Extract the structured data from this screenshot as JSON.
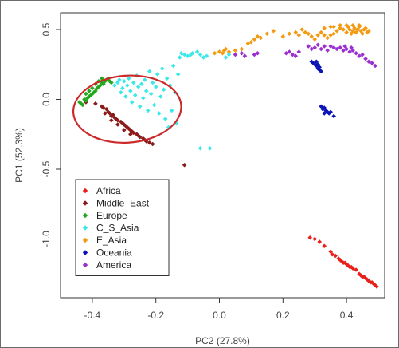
{
  "chart_data": {
    "type": "scatter",
    "xlabel": "PC2 (27.8%)",
    "ylabel": "PC1 (52.3%)",
    "xlim": [
      -0.5,
      0.52
    ],
    "ylim": [
      -1.42,
      0.62
    ],
    "xticks": [
      -0.4,
      -0.2,
      0.0,
      0.2,
      0.4
    ],
    "xtick_labels": [
      "-0.4",
      "-0.2",
      "0.0",
      "0.2",
      "0.4"
    ],
    "yticks": [
      0.5,
      0.0,
      -0.5,
      -1.0
    ],
    "ytick_labels": [
      "0.5",
      "0.0",
      "-0.5",
      "-1.0"
    ],
    "grid": false,
    "legend_position": "bottom-left",
    "annotation": {
      "shape": "hand-drawn ellipse",
      "color": "#cc2a2a",
      "center": [
        -0.29,
        -0.07
      ],
      "radii": [
        0.17,
        0.24
      ]
    },
    "series": [
      {
        "name": "Africa",
        "color": "#e8201c",
        "points": [
          [
            0.285,
            -0.99
          ],
          [
            0.3,
            -1.0
          ],
          [
            0.315,
            -1.02
          ],
          [
            0.33,
            -1.05
          ],
          [
            0.35,
            -1.09
          ],
          [
            0.355,
            -1.11
          ],
          [
            0.365,
            -1.12
          ],
          [
            0.375,
            -1.14
          ],
          [
            0.38,
            -1.15
          ],
          [
            0.385,
            -1.16
          ],
          [
            0.39,
            -1.17
          ],
          [
            0.395,
            -1.17
          ],
          [
            0.4,
            -1.18
          ],
          [
            0.405,
            -1.19
          ],
          [
            0.41,
            -1.2
          ],
          [
            0.415,
            -1.2
          ],
          [
            0.42,
            -1.21
          ],
          [
            0.43,
            -1.22
          ],
          [
            0.44,
            -1.25
          ],
          [
            0.445,
            -1.26
          ],
          [
            0.45,
            -1.27
          ],
          [
            0.455,
            -1.27
          ],
          [
            0.46,
            -1.28
          ],
          [
            0.465,
            -1.29
          ],
          [
            0.47,
            -1.3
          ],
          [
            0.475,
            -1.31
          ],
          [
            0.48,
            -1.31
          ],
          [
            0.485,
            -1.32
          ],
          [
            0.49,
            -1.33
          ],
          [
            0.495,
            -1.34
          ]
        ]
      },
      {
        "name": "Middle_East",
        "color": "#8b1a1a",
        "points": [
          [
            -0.42,
            -0.02
          ],
          [
            -0.39,
            -0.03
          ],
          [
            -0.37,
            -0.05
          ],
          [
            -0.365,
            -0.06
          ],
          [
            -0.355,
            -0.07
          ],
          [
            -0.35,
            -0.09
          ],
          [
            -0.345,
            -0.1
          ],
          [
            -0.34,
            -0.12
          ],
          [
            -0.335,
            -0.11
          ],
          [
            -0.33,
            -0.13
          ],
          [
            -0.325,
            -0.14
          ],
          [
            -0.32,
            -0.15
          ],
          [
            -0.31,
            -0.16
          ],
          [
            -0.305,
            -0.17
          ],
          [
            -0.3,
            -0.18
          ],
          [
            -0.295,
            -0.19
          ],
          [
            -0.29,
            -0.2
          ],
          [
            -0.285,
            -0.21
          ],
          [
            -0.28,
            -0.22
          ],
          [
            -0.275,
            -0.23
          ],
          [
            -0.27,
            -0.24
          ],
          [
            -0.26,
            -0.25
          ],
          [
            -0.255,
            -0.26
          ],
          [
            -0.25,
            -0.27
          ],
          [
            -0.24,
            -0.28
          ],
          [
            -0.235,
            -0.29
          ],
          [
            -0.23,
            -0.3
          ],
          [
            -0.22,
            -0.31
          ],
          [
            -0.21,
            -0.32
          ],
          [
            -0.36,
            -0.1
          ],
          [
            -0.34,
            -0.15
          ],
          [
            -0.32,
            -0.18
          ],
          [
            -0.3,
            -0.22
          ],
          [
            -0.28,
            -0.25
          ],
          [
            -0.11,
            -0.47
          ]
        ]
      },
      {
        "name": "Europe",
        "color": "#22a81c",
        "points": [
          [
            -0.44,
            -0.02
          ],
          [
            -0.435,
            -0.03
          ],
          [
            -0.43,
            -0.04
          ],
          [
            -0.425,
            0.0
          ],
          [
            -0.42,
            -0.01
          ],
          [
            -0.415,
            0.01
          ],
          [
            -0.41,
            0.02
          ],
          [
            -0.405,
            0.03
          ],
          [
            -0.4,
            0.04
          ],
          [
            -0.395,
            0.05
          ],
          [
            -0.39,
            0.06
          ],
          [
            -0.385,
            0.08
          ],
          [
            -0.38,
            0.09
          ],
          [
            -0.375,
            0.1
          ],
          [
            -0.37,
            0.12
          ],
          [
            -0.365,
            0.11
          ],
          [
            -0.36,
            0.13
          ],
          [
            -0.355,
            0.14
          ],
          [
            -0.35,
            0.15
          ],
          [
            -0.345,
            0.13
          ],
          [
            -0.34,
            0.12
          ],
          [
            -0.42,
            0.04
          ],
          [
            -0.41,
            0.06
          ],
          [
            -0.4,
            0.08
          ],
          [
            -0.39,
            0.11
          ],
          [
            -0.38,
            0.13
          ],
          [
            -0.37,
            0.15
          ]
        ]
      },
      {
        "name": "C_S_Asia",
        "color": "#3de8e8",
        "points": [
          [
            -0.33,
            0.1
          ],
          [
            -0.32,
            0.12
          ],
          [
            -0.315,
            0.14
          ],
          [
            -0.31,
            0.05
          ],
          [
            -0.305,
            0.08
          ],
          [
            -0.3,
            0.13
          ],
          [
            -0.295,
            0.02
          ],
          [
            -0.29,
            0.1
          ],
          [
            -0.285,
            0.15
          ],
          [
            -0.28,
            0.06
          ],
          [
            -0.275,
            -0.02
          ],
          [
            -0.27,
            0.12
          ],
          [
            -0.265,
            0.03
          ],
          [
            -0.26,
            0.17
          ],
          [
            -0.255,
            0.09
          ],
          [
            -0.25,
            -0.05
          ],
          [
            -0.245,
            0.11
          ],
          [
            -0.24,
            0.01
          ],
          [
            -0.235,
            0.14
          ],
          [
            -0.23,
            0.06
          ],
          [
            -0.225,
            -0.08
          ],
          [
            -0.22,
            0.2
          ],
          [
            -0.215,
            0.04
          ],
          [
            -0.21,
            0.12
          ],
          [
            -0.205,
            -0.04
          ],
          [
            -0.2,
            0.09
          ],
          [
            -0.195,
            0.18
          ],
          [
            -0.19,
            -0.1
          ],
          [
            -0.185,
            0.02
          ],
          [
            -0.18,
            0.22
          ],
          [
            -0.175,
            0.07
          ],
          [
            -0.17,
            -0.14
          ],
          [
            -0.165,
            0.15
          ],
          [
            -0.16,
            -0.2
          ],
          [
            -0.155,
            0.1
          ],
          [
            -0.15,
            -0.08
          ],
          [
            -0.145,
            0.24
          ],
          [
            -0.14,
            0.05
          ],
          [
            -0.135,
            -0.17
          ],
          [
            -0.13,
            0.18
          ],
          [
            -0.125,
            0.3
          ],
          [
            -0.12,
            0.33
          ],
          [
            -0.11,
            0.32
          ],
          [
            -0.1,
            0.31
          ],
          [
            -0.09,
            0.32
          ],
          [
            -0.085,
            0.33
          ],
          [
            -0.07,
            0.34
          ],
          [
            -0.06,
            0.32
          ],
          [
            -0.05,
            0.3
          ],
          [
            -0.04,
            0.31
          ],
          [
            0.02,
            0.3
          ],
          [
            0.03,
            0.32
          ],
          [
            -0.06,
            -0.35
          ],
          [
            -0.03,
            -0.35
          ]
        ]
      },
      {
        "name": "E_Asia",
        "color": "#f39a11",
        "points": [
          [
            -0.015,
            0.33
          ],
          [
            0.0,
            0.34
          ],
          [
            0.01,
            0.33
          ],
          [
            0.015,
            0.35
          ],
          [
            0.02,
            0.36
          ],
          [
            0.03,
            0.34
          ],
          [
            0.05,
            0.35
          ],
          [
            0.07,
            0.36
          ],
          [
            0.09,
            0.4
          ],
          [
            0.1,
            0.41
          ],
          [
            0.11,
            0.43
          ],
          [
            0.12,
            0.45
          ],
          [
            0.13,
            0.44
          ],
          [
            0.15,
            0.47
          ],
          [
            0.17,
            0.49
          ],
          [
            0.2,
            0.45
          ],
          [
            0.22,
            0.47
          ],
          [
            0.24,
            0.48
          ],
          [
            0.25,
            0.46
          ],
          [
            0.26,
            0.5
          ],
          [
            0.27,
            0.48
          ],
          [
            0.28,
            0.47
          ],
          [
            0.29,
            0.45
          ],
          [
            0.3,
            0.43
          ],
          [
            0.31,
            0.46
          ],
          [
            0.32,
            0.48
          ],
          [
            0.33,
            0.46
          ],
          [
            0.34,
            0.44
          ],
          [
            0.35,
            0.46
          ],
          [
            0.36,
            0.47
          ],
          [
            0.37,
            0.49
          ],
          [
            0.38,
            0.51
          ],
          [
            0.39,
            0.5
          ],
          [
            0.4,
            0.48
          ],
          [
            0.405,
            0.52
          ],
          [
            0.41,
            0.5
          ],
          [
            0.415,
            0.47
          ],
          [
            0.42,
            0.49
          ],
          [
            0.425,
            0.51
          ],
          [
            0.43,
            0.48
          ],
          [
            0.435,
            0.5
          ],
          [
            0.44,
            0.52
          ],
          [
            0.445,
            0.49
          ],
          [
            0.45,
            0.47
          ],
          [
            0.455,
            0.5
          ],
          [
            0.46,
            0.51
          ],
          [
            0.465,
            0.48
          ],
          [
            0.47,
            0.49
          ],
          [
            0.36,
            0.52
          ],
          [
            0.38,
            0.53
          ],
          [
            0.4,
            0.53
          ],
          [
            0.42,
            0.53
          ],
          [
            0.44,
            0.53
          ],
          [
            0.33,
            0.51
          ],
          [
            0.35,
            0.52
          ]
        ]
      },
      {
        "name": "Oceania",
        "color": "#0a14b4",
        "points": [
          [
            0.29,
            0.27
          ],
          [
            0.295,
            0.26
          ],
          [
            0.3,
            0.25
          ],
          [
            0.305,
            0.24
          ],
          [
            0.31,
            0.22
          ],
          [
            0.315,
            0.21
          ],
          [
            0.32,
            0.2
          ],
          [
            0.305,
            0.27
          ],
          [
            0.31,
            0.25
          ],
          [
            0.315,
            0.23
          ],
          [
            0.32,
            -0.05
          ],
          [
            0.325,
            -0.07
          ],
          [
            0.33,
            -0.06
          ],
          [
            0.335,
            -0.08
          ],
          [
            0.34,
            -0.09
          ],
          [
            0.345,
            -0.1
          ],
          [
            0.35,
            -0.09
          ],
          [
            0.36,
            -0.12
          ],
          [
            0.33,
            -0.1
          ]
        ]
      },
      {
        "name": "America",
        "color": "#9b30d0",
        "points": [
          [
            0.05,
            0.32
          ],
          [
            0.08,
            0.31
          ],
          [
            0.07,
            0.33
          ],
          [
            0.12,
            0.33
          ],
          [
            0.11,
            0.32
          ],
          [
            0.21,
            0.33
          ],
          [
            0.22,
            0.34
          ],
          [
            0.23,
            0.32
          ],
          [
            0.24,
            0.31
          ],
          [
            0.25,
            0.34
          ],
          [
            0.28,
            0.38
          ],
          [
            0.29,
            0.36
          ],
          [
            0.3,
            0.37
          ],
          [
            0.31,
            0.39
          ],
          [
            0.32,
            0.36
          ],
          [
            0.33,
            0.38
          ],
          [
            0.34,
            0.35
          ],
          [
            0.35,
            0.38
          ],
          [
            0.36,
            0.37
          ],
          [
            0.37,
            0.36
          ],
          [
            0.38,
            0.37
          ],
          [
            0.39,
            0.35
          ],
          [
            0.4,
            0.36
          ],
          [
            0.41,
            0.34
          ],
          [
            0.42,
            0.35
          ],
          [
            0.43,
            0.33
          ],
          [
            0.44,
            0.31
          ],
          [
            0.45,
            0.32
          ],
          [
            0.46,
            0.29
          ],
          [
            0.47,
            0.27
          ],
          [
            0.48,
            0.26
          ],
          [
            0.49,
            0.24
          ],
          [
            0.395,
            0.38
          ],
          [
            0.415,
            0.37
          ]
        ]
      }
    ]
  }
}
